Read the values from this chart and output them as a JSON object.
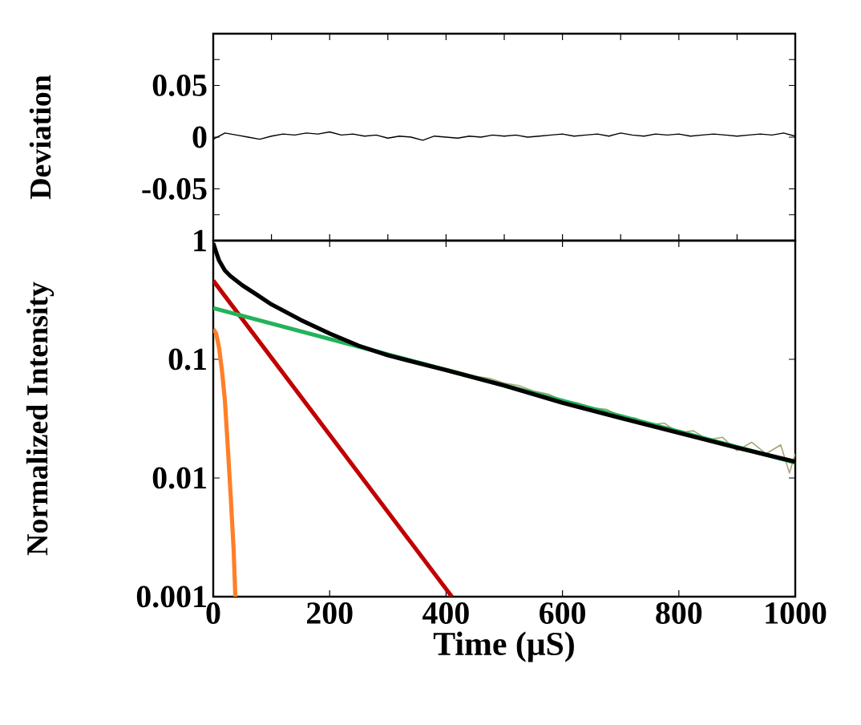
{
  "chart_data": [
    {
      "type": "line",
      "ylabel": "Deviation",
      "xlim": [
        0,
        1000
      ],
      "ylim": [
        -0.1,
        0.1
      ],
      "xticks": [
        {
          "value": 0,
          "label": null
        },
        {
          "value": 100,
          "label": null
        },
        {
          "value": 200,
          "label": null
        },
        {
          "value": 300,
          "label": null
        },
        {
          "value": 400,
          "label": null
        },
        {
          "value": 500,
          "label": null
        },
        {
          "value": 600,
          "label": null
        },
        {
          "value": 700,
          "label": null
        },
        {
          "value": 800,
          "label": null
        },
        {
          "value": 900,
          "label": null
        },
        {
          "value": 1000,
          "label": null
        }
      ],
      "yticks": [
        {
          "value": -0.075,
          "label": null
        },
        -0.05,
        0,
        0.05,
        {
          "value": 0.075,
          "label": null
        }
      ],
      "tick_labels": "y",
      "series": [
        {
          "color": "#000000",
          "x": [
            0,
            20,
            40,
            60,
            80,
            100,
            120,
            140,
            160,
            180,
            200,
            220,
            240,
            260,
            280,
            300,
            320,
            340,
            360,
            380,
            400,
            420,
            440,
            460,
            480,
            500,
            520,
            540,
            560,
            580,
            600,
            620,
            640,
            660,
            680,
            700,
            720,
            740,
            760,
            780,
            800,
            820,
            840,
            860,
            880,
            900,
            920,
            940,
            960,
            980,
            1000
          ],
          "values": [
            -0.002,
            0.004,
            0.002,
            0.0,
            -0.002,
            0.001,
            0.003,
            0.002,
            0.004,
            0.003,
            0.005,
            0.002,
            0.003,
            0.001,
            0.002,
            -0.001,
            0.001,
            0.0,
            -0.003,
            0.001,
            0.0,
            -0.001,
            0.001,
            0.0,
            0.002,
            0.001,
            0.002,
            0.0,
            0.001,
            0.002,
            0.003,
            0.001,
            0.002,
            0.003,
            0.001,
            0.004,
            0.002,
            0.001,
            0.003,
            0.002,
            0.003,
            0.001,
            0.002,
            0.003,
            0.002,
            0.001,
            0.002,
            0.003,
            0.002,
            0.004,
            0.001
          ]
        }
      ]
    },
    {
      "type": "line",
      "xlabel": "Time (μS)",
      "ylabel": "Normalized Intensity",
      "xlim": [
        0,
        1000
      ],
      "ylim": [
        0.001,
        1
      ],
      "log": true,
      "xticks": [
        0,
        200,
        400,
        600,
        800,
        1000
      ],
      "yticks": [
        0.001,
        0.01,
        0.1,
        1
      ],
      "series": [
        {
          "color": "#a9a37a",
          "x": [
            250,
            275,
            300,
            325,
            350,
            375,
            400,
            425,
            450,
            475,
            500,
            525,
            550,
            575,
            600,
            625,
            650,
            675,
            700,
            725,
            750,
            775,
            800,
            825,
            850,
            875,
            900,
            925,
            950,
            975,
            990,
            1000
          ],
          "values": [
            0.128,
            0.12,
            0.111,
            0.102,
            0.097,
            0.089,
            0.084,
            0.078,
            0.072,
            0.069,
            0.063,
            0.06,
            0.054,
            0.051,
            0.045,
            0.043,
            0.039,
            0.038,
            0.033,
            0.032,
            0.028,
            0.029,
            0.024,
            0.025,
            0.021,
            0.022,
            0.017,
            0.02,
            0.016,
            0.019,
            0.011,
            0.016
          ]
        },
        {
          "color": "#ff7f27",
          "x": [
            0,
            5,
            10,
            15,
            20,
            24,
            30,
            35,
            38
          ],
          "values": [
            0.18,
            0.165,
            0.125,
            0.08,
            0.045,
            0.022,
            0.007,
            0.0025,
            0.001
          ]
        },
        {
          "color": "#c00000",
          "x": [
            0,
            410
          ],
          "values": [
            0.46,
            0.001
          ]
        },
        {
          "color": "#22b35a",
          "x": [
            0,
            1000
          ],
          "values": [
            0.27,
            0.0135
          ]
        },
        {
          "color": "#000000",
          "x": [
            0,
            5,
            10,
            20,
            30,
            50,
            75,
            100,
            150,
            200,
            250,
            300,
            400,
            500,
            600,
            700,
            800,
            900,
            1000
          ],
          "values": [
            0.95,
            0.8,
            0.68,
            0.56,
            0.5,
            0.42,
            0.35,
            0.29,
            0.215,
            0.165,
            0.13,
            0.108,
            0.081,
            0.06,
            0.043,
            0.032,
            0.024,
            0.018,
            0.0137
          ]
        }
      ]
    }
  ]
}
